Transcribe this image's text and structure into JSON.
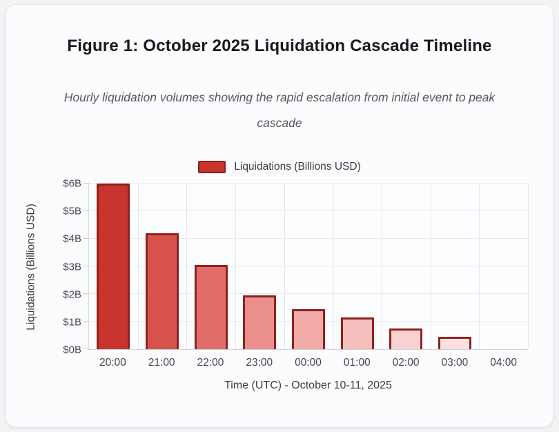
{
  "card": {
    "title": "Figure 1: October 2025 Liquidation Cascade Timeline",
    "subtitle": "Hourly liquidation volumes showing the rapid escalation from initial event to peak cascade"
  },
  "legend": {
    "label": "Liquidations (Billions USD)",
    "swatch_color": "#c9342e",
    "swatch_border": "#8e221e"
  },
  "chart_data": {
    "type": "bar",
    "title": "Figure 1: October 2025 Liquidation Cascade Timeline",
    "subtitle": "Hourly liquidation volumes showing the rapid escalation from initial event to peak cascade",
    "categories": [
      "20:00",
      "21:00",
      "22:00",
      "23:00",
      "00:00",
      "01:00",
      "02:00",
      "03:00",
      "04:00"
    ],
    "values": [
      6.0,
      4.2,
      3.05,
      1.95,
      1.45,
      1.15,
      0.75,
      0.45,
      0
    ],
    "series_name": "Liquidations (Billions USD)",
    "bar_colors": [
      "#c9342e",
      "#d8524d",
      "#e16d69",
      "#ea8f8c",
      "#f0aaa8",
      "#f4bfbd",
      "#f8d2d0",
      "#fae1e0",
      "#ffffff"
    ],
    "bar_border_color": "#8e221e",
    "xlabel": "Time (UTC) - October 10-11, 2025",
    "ylabel": "Liquidations (Billions USD)",
    "ylim": [
      0,
      6
    ],
    "yticks": [
      "$0B",
      "$1B",
      "$2B",
      "$3B",
      "$4B",
      "$5B",
      "$6B"
    ],
    "grid": true,
    "legend_position": "top"
  }
}
